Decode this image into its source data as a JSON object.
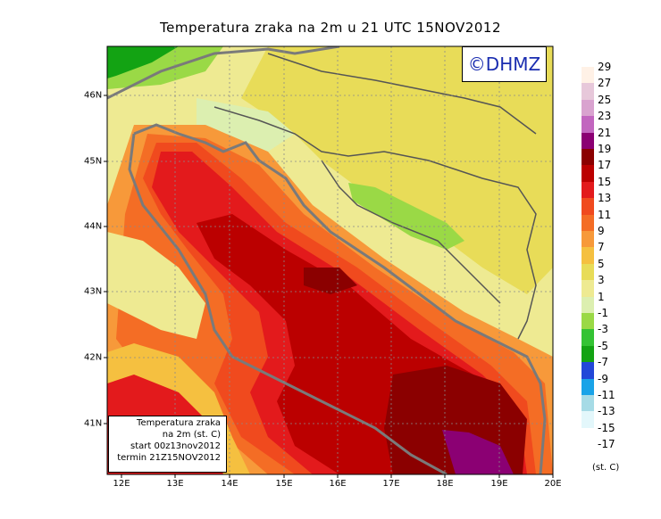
{
  "title": "Temperatura zraka na 2m u 21 UTC 15NOV2012",
  "logo": "©DHMZ",
  "info_box": {
    "line1": "Temperatura zraka",
    "line2": "na 2m (st. C)",
    "line3": "start 00z13nov2012",
    "line4": "termin 21Z15NOV2012"
  },
  "x_ticks": [
    "12E",
    "13E",
    "14E",
    "15E",
    "16E",
    "17E",
    "18E",
    "19E",
    "20E"
  ],
  "y_ticks": [
    "46N",
    "45N",
    "44N",
    "43N",
    "42N",
    "41N"
  ],
  "legend": {
    "unit": "(st. C)",
    "items": [
      {
        "label": "29",
        "color": "#fff1e6"
      },
      {
        "label": "27",
        "color": "#e7c8da"
      },
      {
        "label": "25",
        "color": "#d9a3cf"
      },
      {
        "label": "23",
        "color": "#c266bf"
      },
      {
        "label": "21",
        "color": "#8b0073"
      },
      {
        "label": "19",
        "color": "#8b0000"
      },
      {
        "label": "17",
        "color": "#bb0000"
      },
      {
        "label": "15",
        "color": "#e31a1c"
      },
      {
        "label": "13",
        "color": "#f04a1e"
      },
      {
        "label": "11",
        "color": "#f46d25"
      },
      {
        "label": "9",
        "color": "#f7993a"
      },
      {
        "label": "7",
        "color": "#f5c040"
      },
      {
        "label": "5",
        "color": "#e8dc58"
      },
      {
        "label": "3",
        "color": "#eeea92"
      },
      {
        "label": "1",
        "color": "#dcefb0"
      },
      {
        "label": "-1",
        "color": "#9ad946"
      },
      {
        "label": "-3",
        "color": "#34c334"
      },
      {
        "label": "-5",
        "color": "#13a313"
      },
      {
        "label": "-7",
        "color": "#2347d8"
      },
      {
        "label": "-9",
        "color": "#19a3e8"
      },
      {
        "label": "-11",
        "color": "#a6dbe6"
      },
      {
        "label": "-13",
        "color": "#e3f7fb"
      },
      {
        "label": "-15",
        "color": "#ffffff"
      },
      {
        "label": "-17",
        "color": "#ffffff"
      }
    ]
  },
  "colors": {
    "coast": "#7a7a7a",
    "border": "#555555",
    "logo_text": "#1a2db0",
    "frame": "#000000"
  }
}
